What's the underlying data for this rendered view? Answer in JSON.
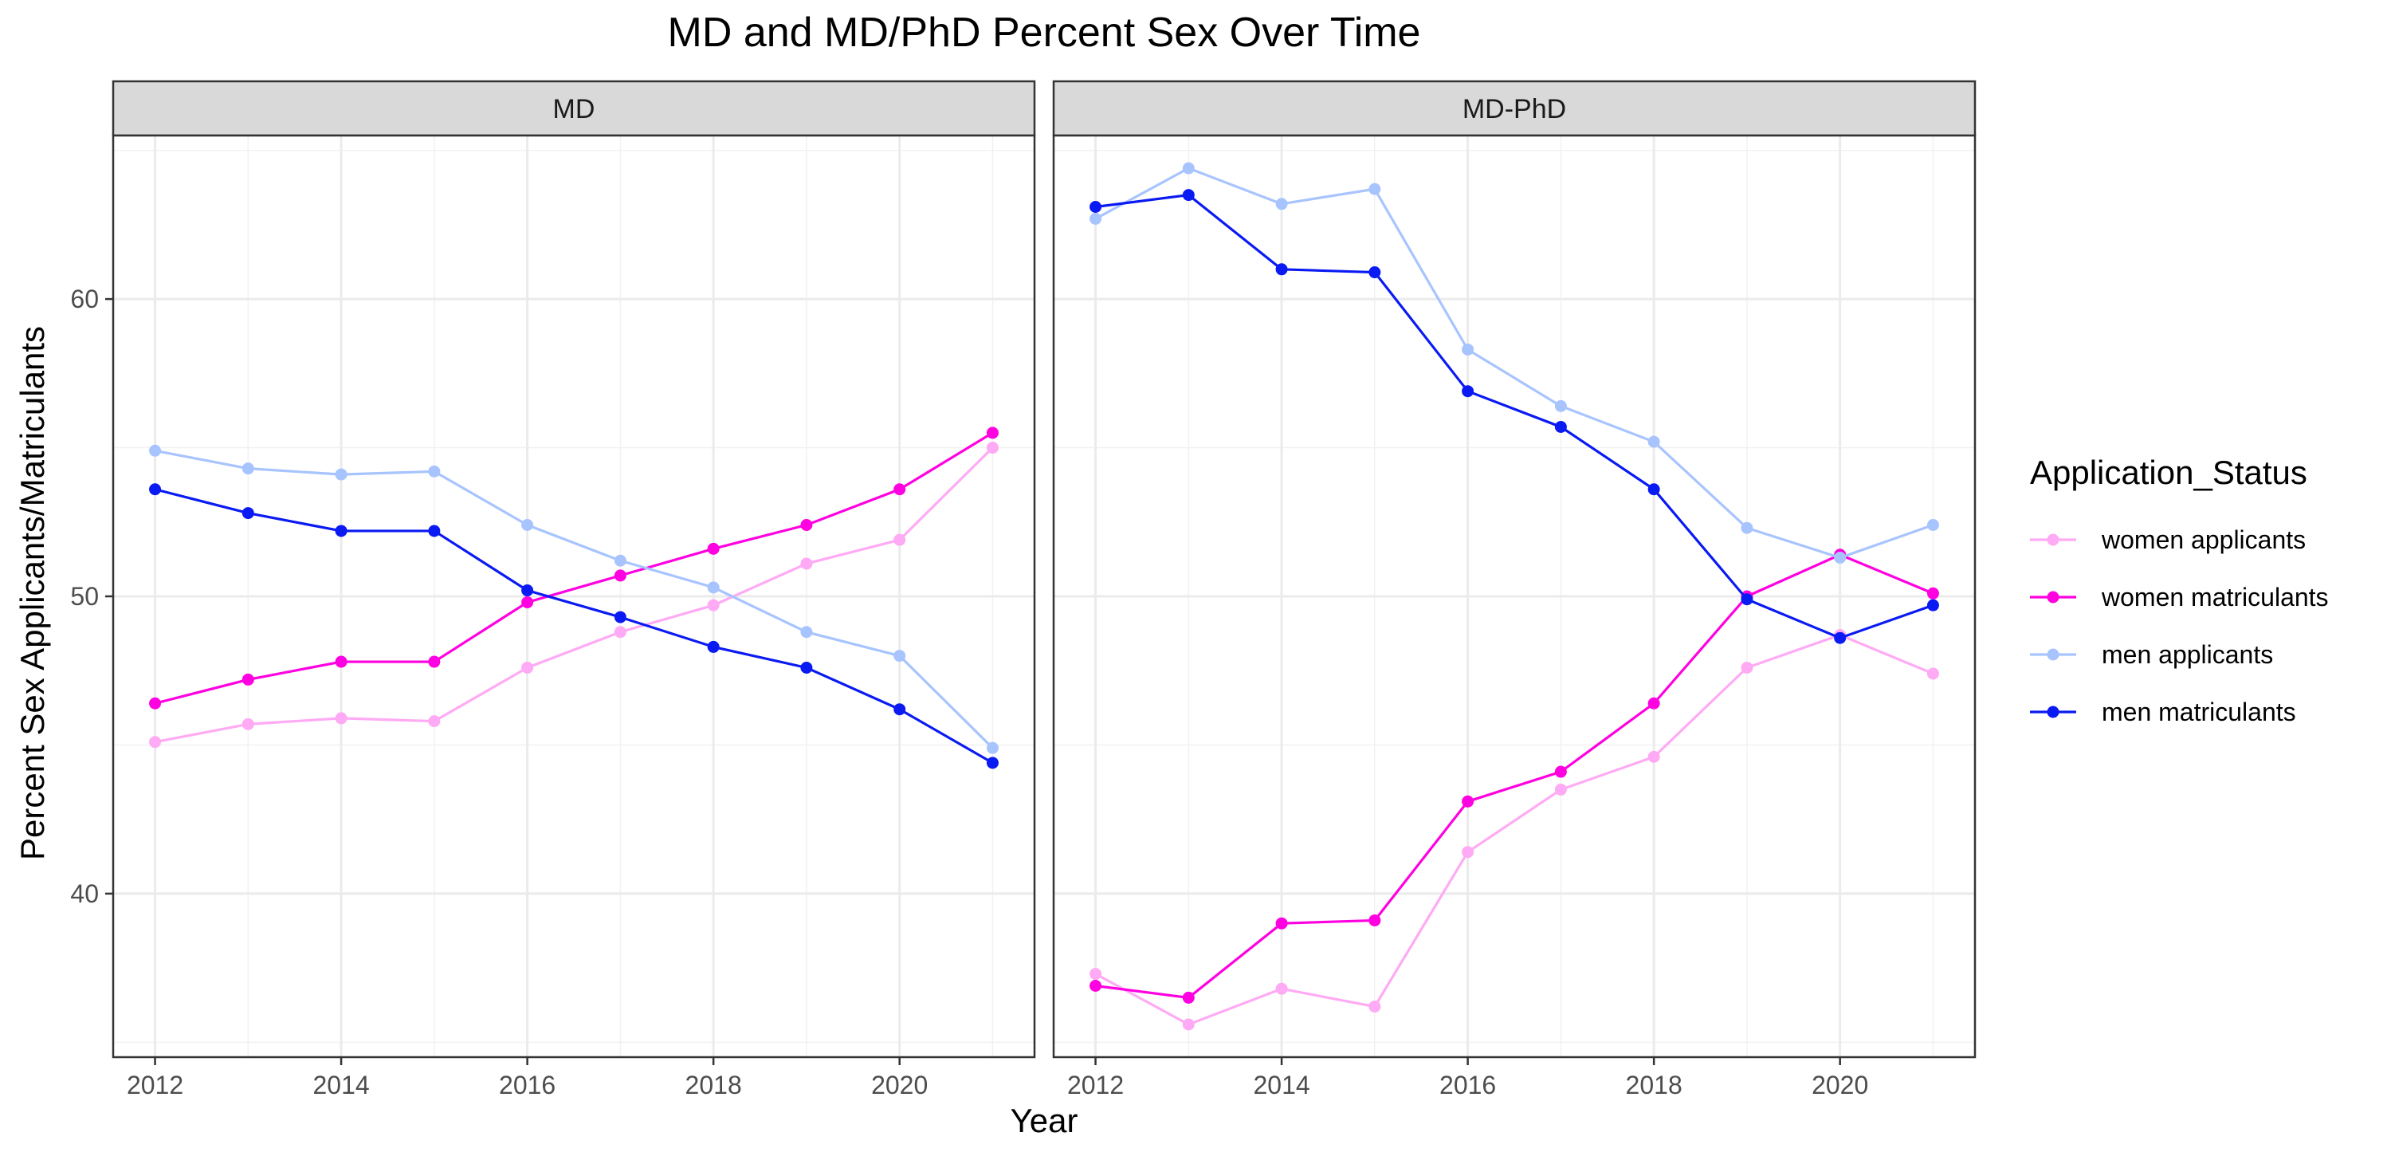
{
  "chart_data": {
    "type": "line",
    "title": "MD and MD/PhD Percent Sex Over Time",
    "xlabel": "Year",
    "ylabel": "Percent Sex Applicants/Matriculants",
    "x": [
      2012,
      2013,
      2014,
      2015,
      2016,
      2017,
      2018,
      2019,
      2020,
      2021
    ],
    "x_ticks": [
      2012,
      2014,
      2016,
      2018,
      2020
    ],
    "y_ticks": [
      40,
      50,
      60
    ],
    "ylim": [
      34.5,
      65.5
    ],
    "xlim": [
      2011.55,
      2021.45
    ],
    "grid": true,
    "legend_placement": "right",
    "legend": {
      "title": "Application_Status",
      "entries": [
        "women applicants",
        "women matriculants",
        "men applicants",
        "men matriculants"
      ]
    },
    "colors": {
      "women applicants": "#FFAAF4",
      "women matriculants": "#FF00E1",
      "men applicants": "#A8C4FF",
      "men matriculants": "#0A1AF2"
    },
    "panels": [
      {
        "name": "MD",
        "series": [
          {
            "name": "women applicants",
            "values": [
              45.1,
              45.7,
              45.9,
              45.8,
              47.6,
              48.8,
              49.7,
              51.1,
              51.9,
              55.0
            ]
          },
          {
            "name": "women matriculants",
            "values": [
              46.4,
              47.2,
              47.8,
              47.8,
              49.8,
              50.7,
              51.6,
              52.4,
              53.6,
              55.5
            ]
          },
          {
            "name": "men applicants",
            "values": [
              54.9,
              54.3,
              54.1,
              54.2,
              52.4,
              51.2,
              50.3,
              48.8,
              48.0,
              44.9
            ]
          },
          {
            "name": "men matriculants",
            "values": [
              53.6,
              52.8,
              52.2,
              52.2,
              50.2,
              49.3,
              48.3,
              47.6,
              46.2,
              44.4
            ]
          }
        ]
      },
      {
        "name": "MD-PhD",
        "series": [
          {
            "name": "women applicants",
            "values": [
              37.3,
              35.6,
              36.8,
              36.2,
              41.4,
              43.5,
              44.6,
              47.6,
              48.7,
              47.4
            ]
          },
          {
            "name": "women matriculants",
            "values": [
              36.9,
              36.5,
              39.0,
              39.1,
              43.1,
              44.1,
              46.4,
              50.0,
              51.4,
              50.1
            ]
          },
          {
            "name": "men applicants",
            "values": [
              62.7,
              64.4,
              63.2,
              63.7,
              58.3,
              56.4,
              55.2,
              52.3,
              51.3,
              52.4
            ]
          },
          {
            "name": "men matriculants",
            "values": [
              63.1,
              63.5,
              61.0,
              60.9,
              56.9,
              55.7,
              53.6,
              49.9,
              48.6,
              49.7
            ]
          }
        ]
      }
    ]
  }
}
